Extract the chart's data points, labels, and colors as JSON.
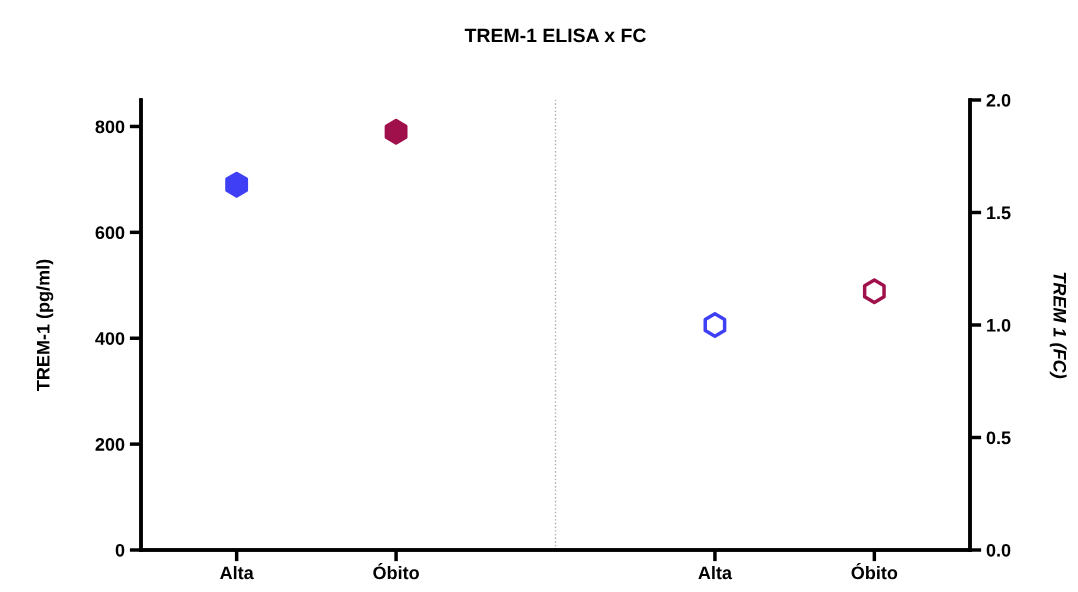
{
  "chart_data": {
    "type": "scatter",
    "title": "TREM-1 ELISA x FC",
    "ylabel": "TREM-1 (pg/ml)",
    "y2label": "TREM 1 (FC)",
    "categories": [
      "Alta",
      "Óbito",
      null,
      "Alta",
      "Óbito"
    ],
    "series": [
      {
        "values": [
          690,
          790,
          null,
          null,
          null
        ],
        "colors": [
          "#3f3ff5",
          "#a0104a",
          null,
          null,
          null
        ]
      },
      {
        "axis": "y2",
        "values": [
          null,
          null,
          null,
          1.0,
          1.15
        ],
        "colors": [
          null,
          null,
          null,
          "#3f3ff5",
          "#a0104a"
        ]
      }
    ],
    "ylim": [
      0,
      850
    ],
    "yticks": [
      0,
      200,
      400,
      600,
      800
    ],
    "y2lim": [
      0,
      2.0
    ],
    "y2ticks": [
      {
        "value": 0,
        "label": "0.0"
      },
      {
        "value": 0.5,
        "label": "0.5"
      },
      {
        "value": 1.0,
        "label": "1.0"
      },
      {
        "value": 1.5,
        "label": "1.5"
      },
      {
        "value": 2.0,
        "label": "2.0"
      }
    ],
    "legend": false
  }
}
